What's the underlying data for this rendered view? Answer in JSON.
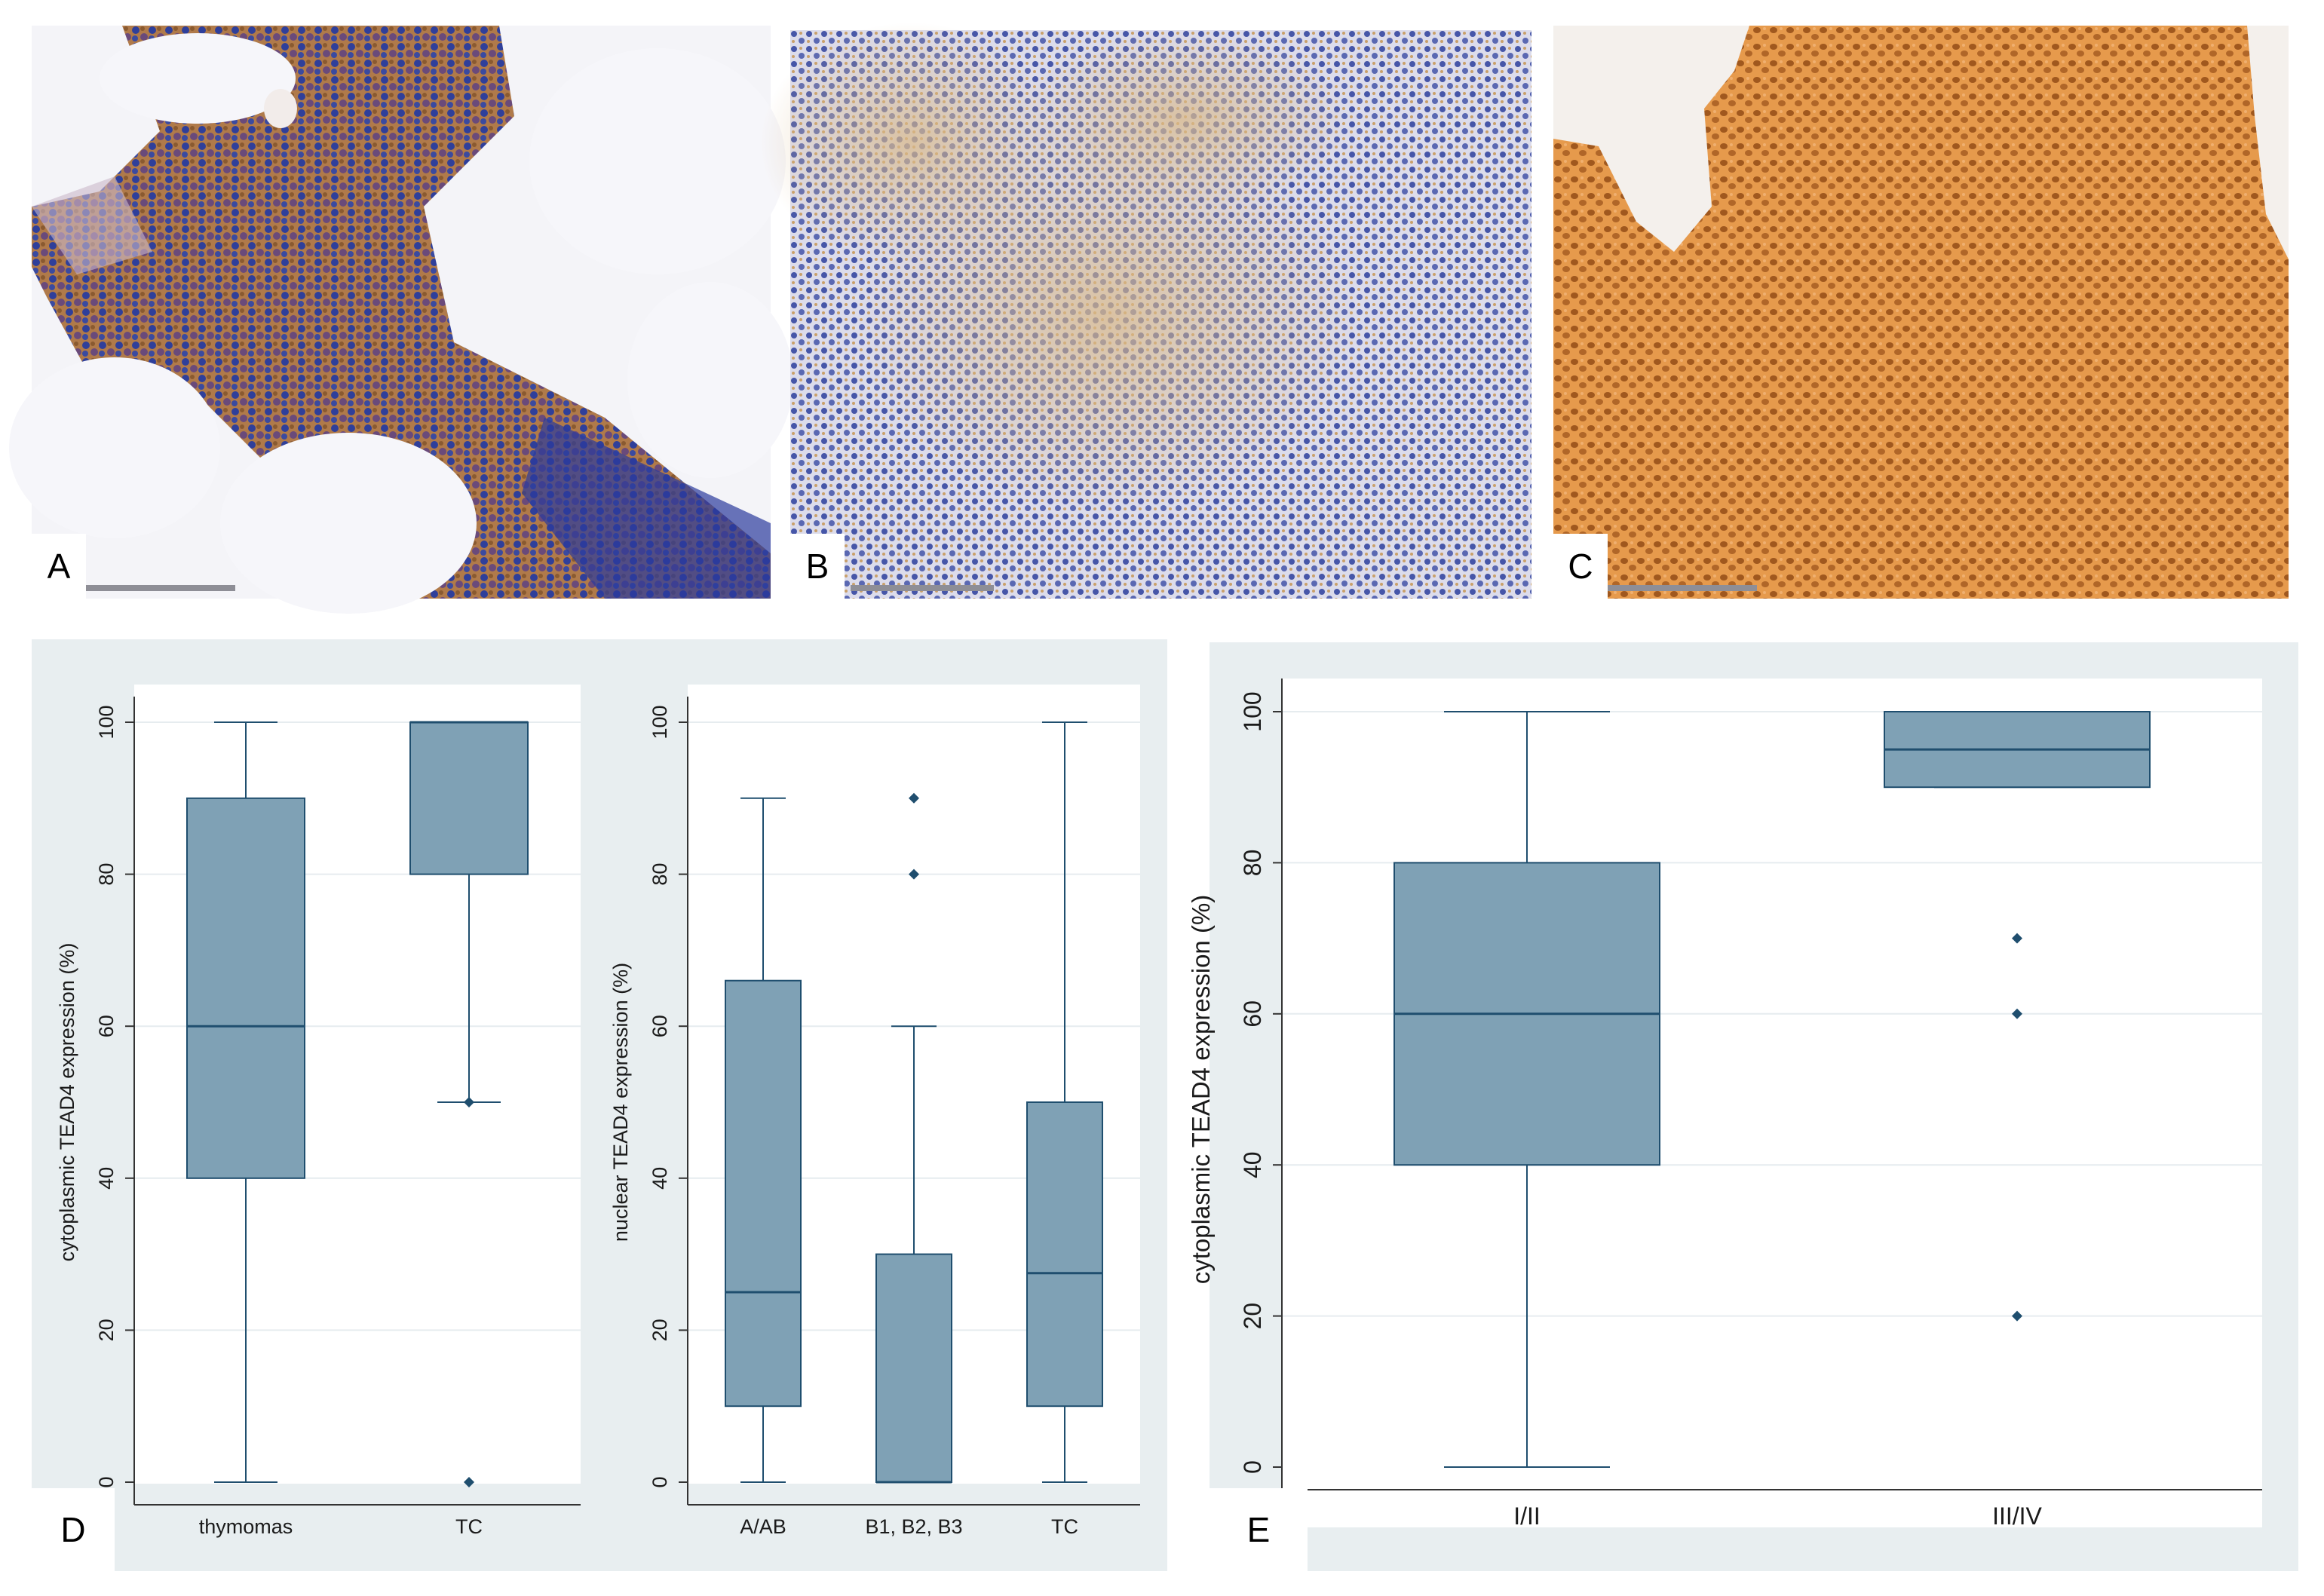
{
  "panels": {
    "A": "A",
    "B": "B",
    "C": "C",
    "D": "D",
    "E": "E"
  },
  "micrographs": [
    {
      "panel": "A",
      "icon": "micrograph-icon",
      "stain_color": "#a8652a",
      "nuclei_color": "#2f3f9a",
      "background": "#f4f4f8"
    },
    {
      "panel": "B",
      "icon": "micrograph-icon",
      "stain_color": "#c9a06a",
      "nuclei_color": "#4656a8",
      "background": "#dcdceb"
    },
    {
      "panel": "C",
      "icon": "micrograph-icon",
      "stain_color": "#d8893a",
      "nuclei_color": "#a0581e",
      "background": "#e69a4c"
    }
  ],
  "colors": {
    "panel_bg": "#e8eef0",
    "plot_bg": "#ffffff",
    "box_fill": "#7fa1b5",
    "box_stroke": "#1f4e6e",
    "grid": "#e6ecef"
  },
  "chart_data": [
    {
      "type": "box",
      "panel": "D-left",
      "ylabel": "cytoplasmic TEAD4 expression (%)",
      "categories": [
        "thymomas",
        "TC"
      ],
      "ylim": [
        0,
        100
      ],
      "yticks": [
        0,
        20,
        40,
        60,
        80,
        100
      ],
      "grid": true,
      "boxes": [
        {
          "category": "thymomas",
          "min": 0,
          "q1": 40,
          "median": 60,
          "q3": 90,
          "max": 100,
          "outliers": []
        },
        {
          "category": "TC",
          "min": 50,
          "q1": 80,
          "median": 100,
          "q3": 100,
          "max": 100,
          "outliers": [
            50,
            0
          ]
        }
      ]
    },
    {
      "type": "box",
      "panel": "D-right",
      "ylabel": "nuclear TEAD4 expression (%)",
      "categories": [
        "A/AB",
        "B1, B2, B3",
        "TC"
      ],
      "ylim": [
        0,
        100
      ],
      "yticks": [
        0,
        20,
        40,
        60,
        80,
        100
      ],
      "grid": true,
      "boxes": [
        {
          "category": "A/AB",
          "min": 0,
          "q1": 10,
          "median": 25,
          "q3": 66,
          "max": 90,
          "outliers": []
        },
        {
          "category": "B1, B2, B3",
          "min": 0,
          "q1": 0,
          "median": 0,
          "q3": 30,
          "max": 60,
          "outliers": [
            80,
            90
          ]
        },
        {
          "category": "TC",
          "min": 0,
          "q1": 10,
          "median": 27.5,
          "q3": 50,
          "max": 100,
          "outliers": []
        }
      ]
    },
    {
      "type": "box",
      "panel": "E",
      "ylabel": "cytoplasmic TEAD4 expression (%)",
      "categories": [
        "I/II",
        "III/IV"
      ],
      "ylim": [
        0,
        100
      ],
      "yticks": [
        0,
        20,
        40,
        60,
        80,
        100
      ],
      "grid": true,
      "boxes": [
        {
          "category": "I/II",
          "min": 0,
          "q1": 40,
          "median": 60,
          "q3": 80,
          "max": 100,
          "outliers": []
        },
        {
          "category": "III/IV",
          "min": 90,
          "q1": 90,
          "median": 95,
          "q3": 100,
          "max": 100,
          "outliers": [
            70,
            60,
            20
          ]
        }
      ]
    }
  ]
}
